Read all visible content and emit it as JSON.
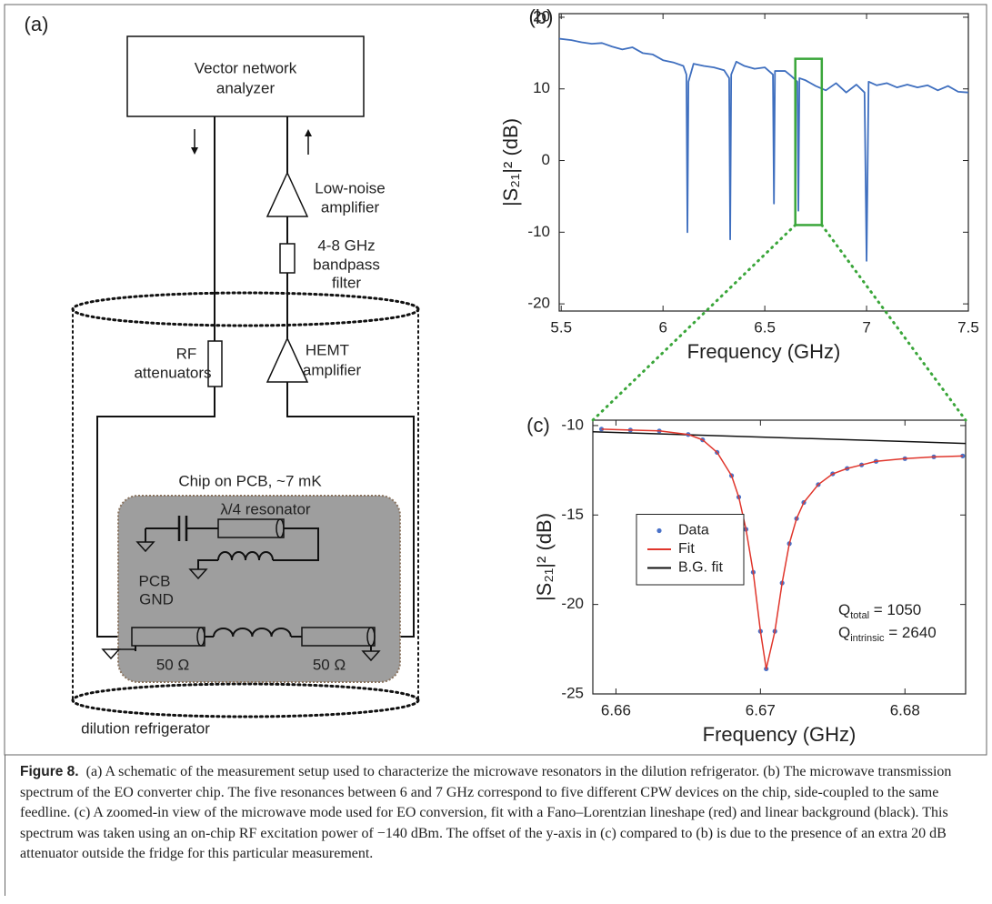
{
  "figure": {
    "panel_label": "(a)"
  },
  "diagram": {
    "vna": [
      "Vector network",
      "analyzer"
    ],
    "lna": [
      "Low-noise",
      "amplifier"
    ],
    "filter": [
      "4-8 GHz",
      "bandpass",
      "filter"
    ],
    "attenuator": [
      "RF",
      "attenuators"
    ],
    "hemt": [
      "HEMT",
      "amplifier"
    ],
    "chip": "Chip on PCB, ~7 mK",
    "resonator": "λ/4 resonator",
    "ground": [
      "PCB",
      "GND"
    ],
    "impedance": [
      "50 Ω",
      "50 Ω"
    ],
    "fridge": "dilution refrigerator"
  },
  "chart_data": [
    {
      "type": "line",
      "panel": "(b)",
      "xlabel": "Frequency (GHz)",
      "ylabel": "|S₂₁|² (dB)",
      "x": [
        5.49,
        5.55,
        5.6,
        5.65,
        5.7,
        5.75,
        5.8,
        5.85,
        5.9,
        5.95,
        6.0,
        6.05,
        6.1,
        6.115,
        6.12,
        6.125,
        6.15,
        6.2,
        6.25,
        6.3,
        6.325,
        6.33,
        6.335,
        6.36,
        6.4,
        6.45,
        6.5,
        6.54,
        6.545,
        6.55,
        6.6,
        6.63,
        6.66,
        6.665,
        6.67,
        6.7,
        6.75,
        6.8,
        6.85,
        6.9,
        6.95,
        6.99,
        7.0,
        7.01,
        7.05,
        7.1,
        7.15,
        7.2,
        7.25,
        7.3,
        7.35,
        7.4,
        7.45,
        7.5
      ],
      "series": [
        {
          "kind": "line",
          "color": "#3f6fbf",
          "values": [
            17,
            16.8,
            16.5,
            16.3,
            16.4,
            15.9,
            15.5,
            15.8,
            15,
            14.8,
            14,
            13.7,
            13.2,
            12,
            -10,
            11,
            13.5,
            13.2,
            13,
            12.6,
            11.5,
            -11,
            12,
            13.8,
            13.2,
            12.8,
            13,
            12,
            -6,
            12.5,
            12.5,
            11.8,
            11,
            -7,
            11.5,
            11.2,
            10.4,
            9.8,
            10.8,
            9.5,
            10.6,
            9.5,
            -14,
            11,
            10.5,
            10.8,
            10.2,
            10.6,
            10.2,
            10.5,
            9.8,
            10.4,
            9.6,
            9.5
          ]
        }
      ],
      "xlim": [
        5.49,
        7.5
      ],
      "xticks": [
        5.5,
        6,
        6.5,
        7,
        7.5
      ],
      "ylim": [
        -21,
        20.5
      ],
      "yticks": [
        -20,
        -10,
        0,
        10,
        20
      ],
      "highlight": {
        "xlim": [
          6.65,
          6.78
        ],
        "ylim": [
          -9,
          14.2
        ],
        "color": "#3aa63a"
      }
    },
    {
      "type": "line",
      "panel": "(c)",
      "xlabel": "Frequency (GHz)",
      "ylabel": "|S₂₁|² (dB)",
      "series": [
        {
          "name": "Data",
          "kind": "scatter",
          "color": "#4a72c8",
          "x": [
            6.659,
            6.661,
            6.663,
            6.665,
            6.666,
            6.667,
            6.668,
            6.6685,
            6.669,
            6.6695,
            6.67,
            6.6704,
            6.671,
            6.6715,
            6.672,
            6.6725,
            6.673,
            6.674,
            6.675,
            6.676,
            6.677,
            6.678,
            6.68,
            6.682,
            6.684
          ],
          "values": [
            -10.2,
            -10.25,
            -10.3,
            -10.5,
            -10.8,
            -11.5,
            -12.8,
            -14.0,
            -15.8,
            -18.2,
            -21.5,
            -23.6,
            -21.5,
            -18.8,
            -16.6,
            -15.2,
            -14.3,
            -13.3,
            -12.7,
            -12.4,
            -12.2,
            -12.0,
            -11.85,
            -11.75,
            -11.7
          ]
        },
        {
          "name": "Fit",
          "kind": "line",
          "color": "#e0362c",
          "x": [
            6.659,
            6.661,
            6.663,
            6.665,
            6.666,
            6.667,
            6.668,
            6.6685,
            6.669,
            6.6695,
            6.67,
            6.6704,
            6.671,
            6.6715,
            6.672,
            6.6725,
            6.673,
            6.674,
            6.675,
            6.676,
            6.677,
            6.678,
            6.68,
            6.682,
            6.684
          ],
          "values": [
            -10.2,
            -10.25,
            -10.3,
            -10.5,
            -10.8,
            -11.5,
            -12.8,
            -14.0,
            -15.8,
            -18.2,
            -21.5,
            -23.6,
            -21.5,
            -18.8,
            -16.6,
            -15.2,
            -14.3,
            -13.3,
            -12.7,
            -12.4,
            -12.2,
            -12.0,
            -11.85,
            -11.75,
            -11.7
          ]
        },
        {
          "name": "B.G. fit",
          "kind": "line",
          "color": "#111111",
          "x": [
            6.6584,
            6.6842
          ],
          "values": [
            -10.35,
            -11.0
          ]
        }
      ],
      "xlim": [
        6.6584,
        6.6842
      ],
      "xticks": [
        6.66,
        6.67,
        6.68
      ],
      "ylim": [
        -25,
        -9.7
      ],
      "yticks": [
        -25,
        -20,
        -15,
        -10
      ],
      "legend": "center left",
      "annotations": [
        {
          "symbol": "Q",
          "subscript": "total",
          "text": " = 1050"
        },
        {
          "symbol": "Q",
          "subscript": "intrinsic",
          "text": " = 2640"
        }
      ]
    }
  ],
  "caption": {
    "label": "Figure 8.",
    "text": "(a) A schematic of the measurement setup used to characterize the microwave resonators in the dilution refrigerator. (b) The microwave transmission spectrum of the EO converter chip. The five resonances between 6 and 7 GHz correspond to five different CPW devices on the chip, side-coupled to the same feedline. (c) A zoomed-in view of the microwave mode used for EO conversion, fit with a Fano–Lorentzian lineshape (red) and linear background (black). This spectrum was taken using an on-chip RF excitation power of −140 dBm. The offset of the y-axis in (c) compared to (b) is due to the presence of an extra 20 dB attenuator outside the fridge for this particular measurement."
  }
}
